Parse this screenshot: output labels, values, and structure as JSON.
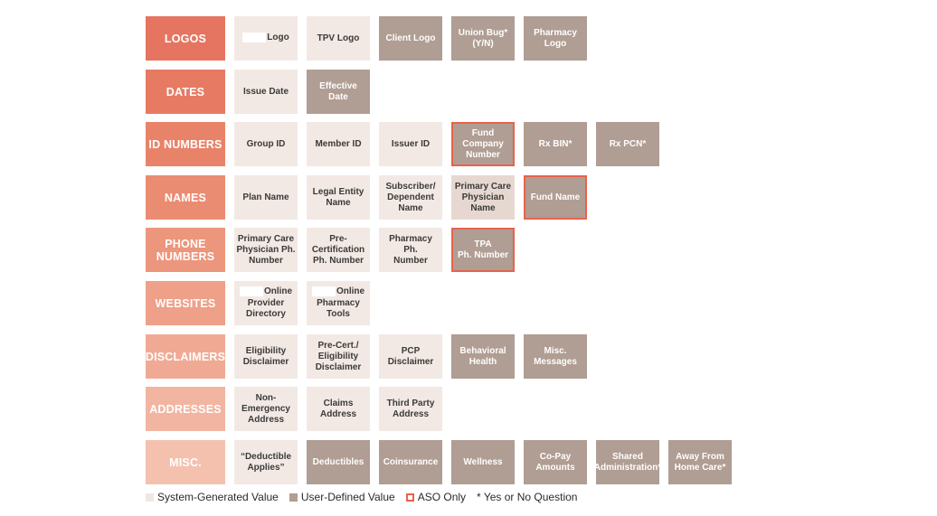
{
  "rows": [
    {
      "category": "LOGOS",
      "color": "#e57560",
      "cells": [
        {
          "text": "Logo",
          "type": "sys",
          "redacted": true
        },
        {
          "text": "TPV Logo",
          "type": "sys"
        },
        {
          "text": "Client Logo",
          "type": "user"
        },
        {
          "text": "Union Bug*\n(Y/N)",
          "type": "user"
        },
        {
          "text": "Pharmacy\nLogo",
          "type": "user"
        }
      ]
    },
    {
      "category": "DATES",
      "color": "#e77a63",
      "cells": [
        {
          "text": "Issue Date",
          "type": "sys"
        },
        {
          "text": "Effective\nDate",
          "type": "user"
        }
      ]
    },
    {
      "category": "ID NUMBERS",
      "color": "#e88369",
      "cells": [
        {
          "text": "Group ID",
          "type": "sys"
        },
        {
          "text": "Member ID",
          "type": "sys"
        },
        {
          "text": "Issuer ID",
          "type": "sys"
        },
        {
          "text": "Fund\nCompany\nNumber",
          "type": "user",
          "aso": true
        },
        {
          "text": "Rx BIN*",
          "type": "user"
        },
        {
          "text": "Rx PCN*",
          "type": "user"
        }
      ]
    },
    {
      "category": "NAMES",
      "color": "#ea8c72",
      "cells": [
        {
          "text": "Plan Name",
          "type": "sys"
        },
        {
          "text": "Legal Entity\nName",
          "type": "sys"
        },
        {
          "text": "Subscriber/\nDependent\nName",
          "type": "sys"
        },
        {
          "text": "Primary Care\nPhysician\nName",
          "type": "sys-dark"
        },
        {
          "text": "Fund Name",
          "type": "user",
          "aso": true
        }
      ]
    },
    {
      "category": "PHONE\nNUMBERS",
      "color": "#ec967d",
      "cells": [
        {
          "text": "Primary Care\nPhysician Ph.\nNumber",
          "type": "sys"
        },
        {
          "text": "Pre-\nCertification\nPh. Number",
          "type": "sys"
        },
        {
          "text": "Pharmacy Ph.\nNumber",
          "type": "sys"
        },
        {
          "text": "TPA\nPh. Number",
          "type": "user",
          "aso": true
        }
      ]
    },
    {
      "category": "WEBSITES",
      "color": "#eea088",
      "cells": [
        {
          "text": "Online\nProvider\nDirectory",
          "type": "sys",
          "redacted": true
        },
        {
          "text": "Online\nPharmacy\nTools",
          "type": "sys",
          "redacted": true
        }
      ]
    },
    {
      "category": "DISCLAIMERS",
      "color": "#f0aa94",
      "cells": [
        {
          "text": "Eligibility\nDisclaimer",
          "type": "sys"
        },
        {
          "text": "Pre-Cert./\nEligibility\nDisclaimer",
          "type": "sys"
        },
        {
          "text": "PCP\nDisclaimer",
          "type": "sys"
        },
        {
          "text": "Behavioral\nHealth",
          "type": "user"
        },
        {
          "text": "Misc.\nMessages",
          "type": "user"
        }
      ]
    },
    {
      "category": "ADDRESSES",
      "color": "#f2b5a1",
      "cells": [
        {
          "text": "Non-\nEmergency\nAddress",
          "type": "sys"
        },
        {
          "text": "Claims\nAddress",
          "type": "sys"
        },
        {
          "text": "Third Party\nAddress",
          "type": "sys"
        }
      ]
    },
    {
      "category": "MISC.",
      "color": "#f4c1ae",
      "cells": [
        {
          "text": "“Deductible\nApplies”",
          "type": "sys"
        },
        {
          "text": "Deductibles",
          "type": "user"
        },
        {
          "text": "Coinsurance",
          "type": "user"
        },
        {
          "text": "Wellness",
          "type": "user"
        },
        {
          "text": "Co-Pay\nAmounts",
          "type": "user"
        },
        {
          "text": "Shared\nAdministration*",
          "type": "user"
        },
        {
          "text": "Away From\nHome Care*",
          "type": "user"
        }
      ]
    }
  ],
  "legend": {
    "system_label": "System-Generated Value",
    "user_label": "User-Defined Value",
    "aso_label": "ASO Only",
    "note": "* Yes or No Question"
  },
  "colors": {
    "system": "#f3e9e4",
    "user": "#b09d93",
    "aso_border": "#e8634a"
  }
}
